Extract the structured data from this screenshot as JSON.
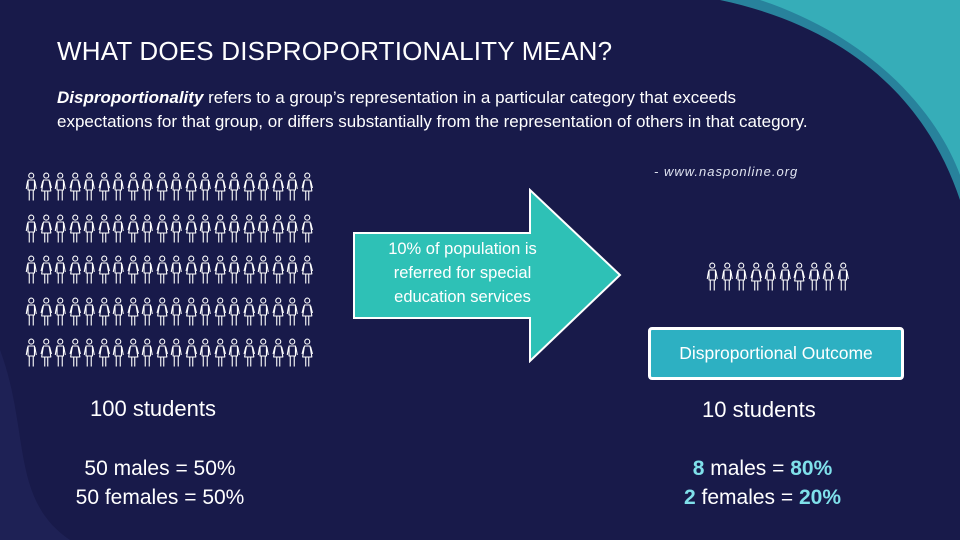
{
  "slide": {
    "title": "WHAT DOES DISPROPORTIONALITY MEAN?",
    "definition_term": "Disproportionality",
    "definition_text": " refers to a group’s representation in a particular category that exceeds expectations for that group, or differs substantially from the representation of others in that category.",
    "source": "- www.nasponline.org",
    "arrow_text": "10% of population is referred for special education services",
    "outcome_label": "Disproportional Outcome",
    "left_count": "100 students",
    "right_count": "10 students",
    "left_stats": [
      "50 males = 50%",
      "50 females = 50%"
    ],
    "right_stats": [
      {
        "num": "8",
        "label": " males = ",
        "pct": "80%"
      },
      {
        "num": "2",
        "label": " females = ",
        "pct": "20%"
      }
    ]
  },
  "people_grid": {
    "rows": 5,
    "cols": 20,
    "pattern": [
      "male",
      "female"
    ]
  },
  "people_outcome": [
    "male",
    "male",
    "male",
    "female",
    "male",
    "male",
    "female",
    "male",
    "male",
    "male"
  ],
  "colors": {
    "background": "#181a4a",
    "accent": "#2db0c2",
    "highlight": "#7fe0ea",
    "arrow_fill": "#2ec1b6"
  },
  "icons": [
    "male-person-icon",
    "female-person-icon",
    "right-arrow-shape"
  ]
}
